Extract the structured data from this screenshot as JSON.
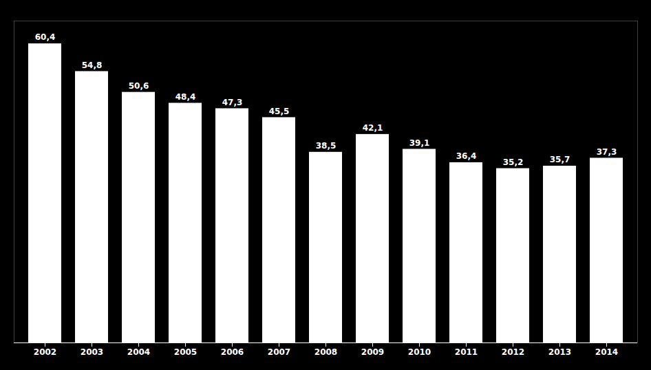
{
  "chart_data": {
    "type": "bar",
    "categories": [
      "2002",
      "2003",
      "2004",
      "2005",
      "2006",
      "2007",
      "2008",
      "2009",
      "2010",
      "2011",
      "2012",
      "2013",
      "2014"
    ],
    "values": [
      60.4,
      54.8,
      50.6,
      48.4,
      47.3,
      45.5,
      38.5,
      42.1,
      39.1,
      36.4,
      35.2,
      35.7,
      37.3
    ],
    "value_labels": [
      "60,4",
      "54,8",
      "50,6",
      "48,4",
      "47,3",
      "45,5",
      "38,5",
      "42,1",
      "39,1",
      "36,4",
      "35,2",
      "35,7",
      "37,3"
    ],
    "data_labels": true,
    "color": "#ffffff",
    "ylim": [
      0,
      65
    ],
    "grid": false,
    "tick_labels": "x"
  }
}
